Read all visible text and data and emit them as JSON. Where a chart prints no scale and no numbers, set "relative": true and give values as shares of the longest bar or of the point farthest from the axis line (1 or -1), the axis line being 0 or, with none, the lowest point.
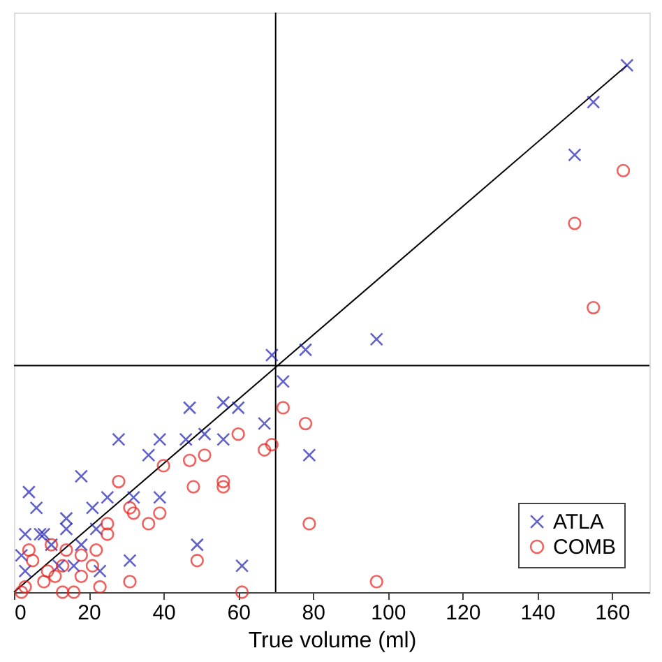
{
  "chart_data": {
    "type": "scatter",
    "relative": true,
    "xlabel": "True volume (ml)",
    "xlim": [
      0,
      170
    ],
    "xticks": [
      0,
      20,
      40,
      60,
      80,
      100,
      120,
      140,
      160
    ],
    "grid": false,
    "legend": "bottom right",
    "ref_lines": [
      {
        "axis": "x",
        "value": 70,
        "color": "#000000"
      },
      {
        "axis": "y",
        "value": 0.43,
        "color": "#000000"
      }
    ],
    "series": [
      {
        "type": "line",
        "color": "#000000",
        "marker": "none",
        "line_style": "solid",
        "x": [
          0,
          164
        ],
        "values": [
          0,
          1
        ]
      },
      {
        "name": "ATLA",
        "color": "#1f1fb4",
        "marker": "cross",
        "x": [
          164,
          155,
          150,
          97,
          78,
          69,
          72,
          79,
          47,
          56,
          60,
          51,
          46,
          56,
          67,
          39,
          28,
          36,
          18,
          4,
          6,
          25,
          32,
          39,
          21,
          14,
          3,
          7,
          8,
          14,
          22,
          49,
          31,
          61,
          23,
          16,
          18,
          10,
          2,
          3,
          12
        ],
        "values": [
          1,
          0.93,
          0.83,
          0.48,
          0.46,
          0.45,
          0.4,
          0.26,
          0.35,
          0.36,
          0.35,
          0.3,
          0.29,
          0.29,
          0.32,
          0.29,
          0.29,
          0.26,
          0.22,
          0.19,
          0.16,
          0.18,
          0.18,
          0.18,
          0.16,
          0.14,
          0.11,
          0.11,
          0.11,
          0.12,
          0.12,
          0.09,
          0.06,
          0.05,
          0.04,
          0.05,
          0.09,
          0.09,
          0.07,
          0.04,
          0.05
        ]
      },
      {
        "name": "COMB",
        "color": "#e8221e",
        "marker": "circle",
        "x": [
          163,
          150,
          155,
          72,
          78,
          79,
          97,
          60,
          51,
          47,
          67,
          69,
          40,
          28,
          48,
          56,
          56,
          31,
          32,
          36,
          39,
          49,
          31,
          61,
          25,
          25,
          22,
          18,
          14,
          10,
          5,
          4,
          23,
          13,
          16,
          18,
          21,
          11,
          8,
          3,
          9,
          13,
          2
        ],
        "values": [
          0.8,
          0.7,
          0.54,
          0.35,
          0.32,
          0.13,
          0.02,
          0.3,
          0.26,
          0.25,
          0.27,
          0.28,
          0.24,
          0.21,
          0.2,
          0.21,
          0.2,
          0.16,
          0.15,
          0.13,
          0.15,
          0.06,
          0.02,
          0,
          0.13,
          0.11,
          0.08,
          0.07,
          0.08,
          0.09,
          0.06,
          0.08,
          0.01,
          0,
          0,
          0.03,
          0.05,
          0.03,
          0.02,
          0.01,
          0.04,
          0.05,
          0
        ]
      }
    ]
  }
}
